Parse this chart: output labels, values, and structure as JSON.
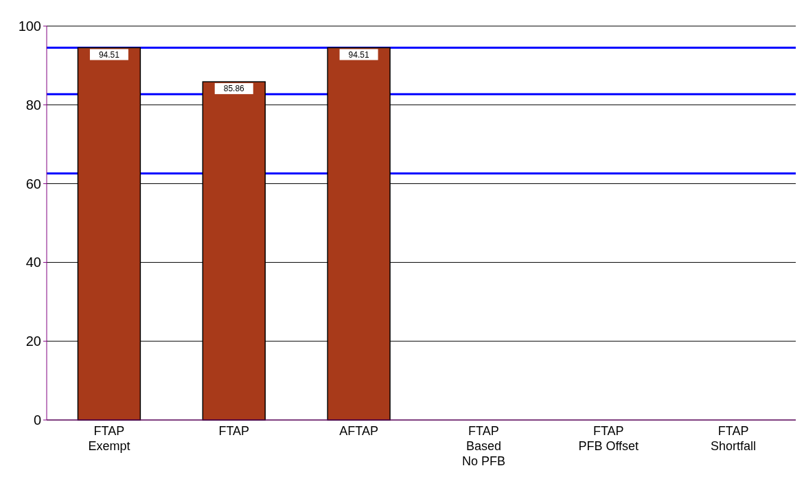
{
  "chart_data": {
    "type": "bar",
    "categories": [
      "FTAP\nExempt",
      "FTAP",
      "AFTAP",
      "FTAP\nBased\nNo PFB",
      "FTAP\nPFB Offset",
      "FTAP\nShortfall"
    ],
    "values": [
      94.51,
      85.86,
      94.51,
      null,
      null,
      null
    ],
    "color": "#a83a1a",
    "ylim": [
      0,
      100
    ],
    "yticks": [
      0,
      20,
      40,
      60,
      80,
      100
    ],
    "grid": "y",
    "data_labels": true,
    "ref_lines": [
      {
        "axis": "y",
        "value": 94.5,
        "color": "#0000ff"
      },
      {
        "axis": "y",
        "value": 82.7,
        "color": "#0000ff"
      },
      {
        "axis": "y",
        "value": 62.6,
        "color": "#0000ff"
      }
    ]
  }
}
